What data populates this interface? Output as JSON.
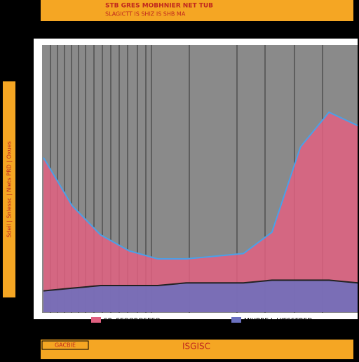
{
  "chart_data": {
    "type": "area",
    "title": "STB GRES MOBHNIER NET TUB",
    "subtitle": "SLAGICTT IS SHIZ IS SHB MA",
    "y_label": "Sdeil | Snlessc | Niets PRD | Oxues",
    "footer": "ISGISC",
    "footer_left": "GACBIE",
    "categories": [
      null,
      null,
      null,
      null,
      null,
      null,
      null,
      null,
      null,
      null,
      null,
      null
    ],
    "ylim": [
      0,
      100
    ],
    "series": [
      {
        "name": "SR. SEOOROSEEO",
        "color": "#e06080",
        "values": [
          58,
          40,
          29,
          23,
          20,
          20,
          21,
          22,
          30,
          62,
          75,
          70
        ]
      },
      {
        "name": "MIUBRE I. UIESSERED",
        "color": "#6a70c0",
        "values": [
          8,
          9,
          10,
          10,
          10,
          11,
          11,
          11,
          12,
          12,
          12,
          11
        ]
      }
    ]
  }
}
